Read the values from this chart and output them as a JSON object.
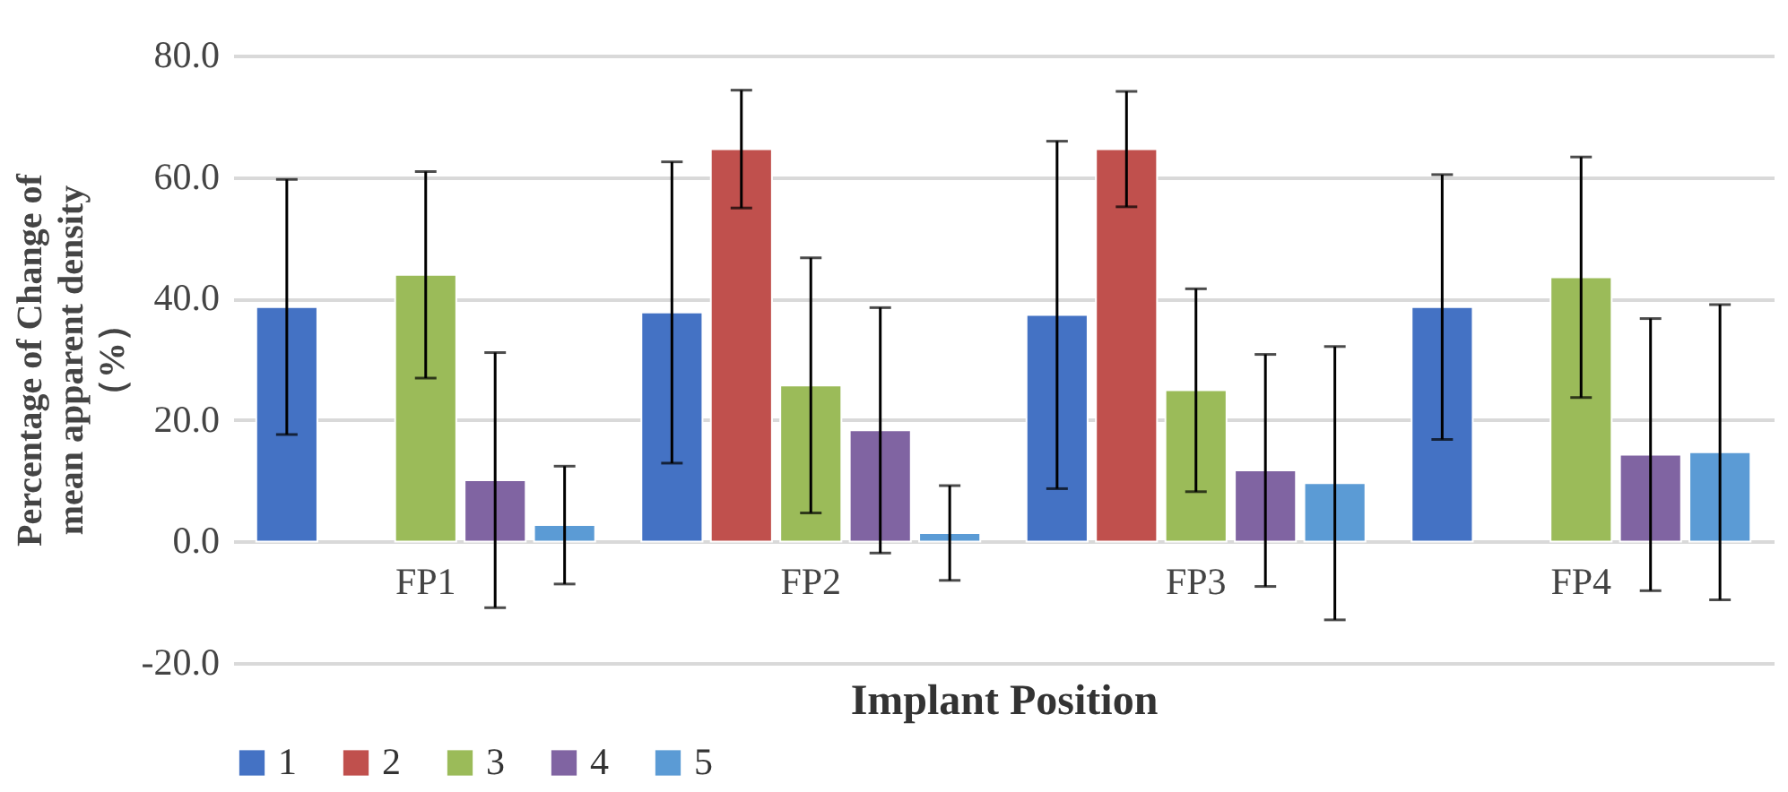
{
  "chart_data": {
    "type": "bar",
    "categories": [
      "FP1",
      "FP2",
      "FP3",
      "FP4"
    ],
    "xlabel": "Implant Position",
    "ylabel": "Percentage of Change of\nmean apparent density\n（%）",
    "ylim": [
      -20,
      80
    ],
    "yticks": [
      {
        "value": -20,
        "label": "-20.0"
      },
      {
        "value": 0,
        "label": "0.0"
      },
      {
        "value": 20,
        "label": "20.0"
      },
      {
        "value": 40,
        "label": "40.0"
      },
      {
        "value": 60,
        "label": "60.0"
      },
      {
        "value": 80,
        "label": "80.0"
      }
    ],
    "grid": "y",
    "legend": "bottom",
    "series": [
      {
        "name": "1",
        "color": "#4472c4",
        "values": [
          38.6,
          37.7,
          37.3,
          38.6
        ],
        "errors": [
          21,
          24.8,
          28.6,
          21.8
        ]
      },
      {
        "name": "2",
        "color": "#c0504d",
        "values": [
          null,
          64.6,
          64.6,
          null
        ],
        "errors": [
          null,
          9.7,
          9.5,
          null
        ]
      },
      {
        "name": "3",
        "color": "#9bbb59",
        "values": [
          43.9,
          25.7,
          24.9,
          43.5
        ],
        "errors": [
          17,
          21,
          16.7,
          19.8
        ]
      },
      {
        "name": "4",
        "color": "#8064a2",
        "values": [
          10.1,
          18.3,
          11.7,
          14.3
        ],
        "errors": [
          21,
          20.2,
          19.1,
          22.4
        ]
      },
      {
        "name": "5",
        "color": "#5b9bd5",
        "values": [
          2.7,
          1.4,
          9.6,
          14.7
        ],
        "errors": [
          9.7,
          7.8,
          22.5,
          24.3
        ]
      }
    ]
  }
}
